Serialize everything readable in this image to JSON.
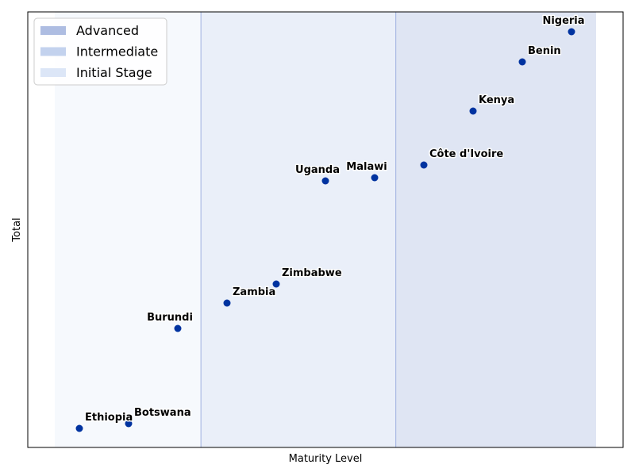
{
  "chart_data": {
    "type": "scatter",
    "title": "",
    "xlabel": "Maturity Level",
    "ylabel": "Total",
    "x_ticks_visible": false,
    "y_ticks_visible": false,
    "grid": false,
    "legend_position": "top-left",
    "marker_color": "#0033a0",
    "bands": [
      {
        "name": "Initial Stage",
        "color": "#dce6f7"
      },
      {
        "name": "Intermediate",
        "color": "#c3d2ee"
      },
      {
        "name": "Advanced",
        "color": "#aebde2"
      }
    ],
    "legend": [
      "Advanced",
      "Intermediate",
      "Initial Stage"
    ],
    "points": [
      {
        "label": "Ethiopia",
        "x": 0,
        "y": 0.6
      },
      {
        "label": "Botswana",
        "x": 1,
        "y": 0.9
      },
      {
        "label": "Burundi",
        "x": 2,
        "y": 6.9
      },
      {
        "label": "Zambia",
        "x": 3,
        "y": 8.5
      },
      {
        "label": "Zimbabwe",
        "x": 4,
        "y": 9.7
      },
      {
        "label": "Uganda",
        "x": 5,
        "y": 16.2
      },
      {
        "label": "Malawi",
        "x": 6,
        "y": 16.4
      },
      {
        "label": "Côte d'Ivoire",
        "x": 7,
        "y": 17.2
      },
      {
        "label": "Kenya",
        "x": 8,
        "y": 20.6
      },
      {
        "label": "Benin",
        "x": 9,
        "y": 23.7
      },
      {
        "label": "Nigeria",
        "x": 10,
        "y": 25.6
      }
    ]
  }
}
